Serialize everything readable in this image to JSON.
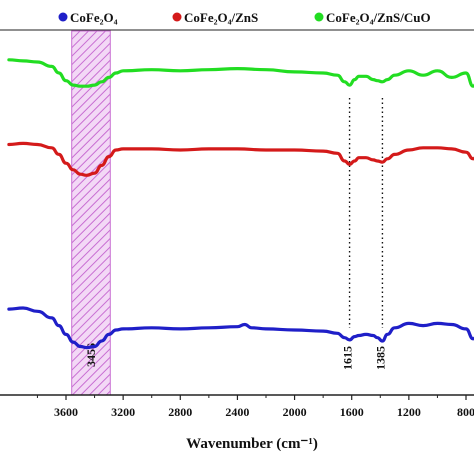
{
  "chart_data": {
    "type": "line",
    "title": "",
    "xlabel": "Wavenumber (cm⁻¹)",
    "ylabel": "",
    "x_axis": "reversed",
    "xlim": [
      4000,
      650
    ],
    "x_ticks": [
      3600,
      3200,
      2800,
      2400,
      2000,
      1600,
      1200,
      800
    ],
    "x_tick_labels": [
      "3600",
      "3200",
      "2800",
      "2400",
      "2000",
      "1600",
      "1200",
      "800"
    ],
    "grid": false,
    "legend_position": "top",
    "series": [
      {
        "name": "CoFe₂O₄",
        "color": "#1f1fc8",
        "x": [
          4000,
          3900,
          3800,
          3700,
          3650,
          3600,
          3550,
          3500,
          3456,
          3400,
          3350,
          3300,
          3250,
          3200,
          3000,
          2800,
          2600,
          2400,
          2350,
          2300,
          2200,
          2000,
          1800,
          1700,
          1650,
          1615,
          1580,
          1550,
          1500,
          1450,
          1420,
          1385,
          1350,
          1300,
          1200,
          1100,
          1000,
          900,
          800,
          750,
          700
        ],
        "y": [
          0.95,
          1.0,
          0.85,
          0.55,
          0.2,
          -0.2,
          -0.55,
          -0.75,
          -0.8,
          -0.75,
          -0.5,
          -0.2,
          0.0,
          0.05,
          0.1,
          0.05,
          0.1,
          0.15,
          0.25,
          0.1,
          0.05,
          0.0,
          -0.05,
          -0.15,
          -0.35,
          -0.45,
          -0.3,
          -0.25,
          -0.2,
          -0.25,
          -0.35,
          -0.5,
          -0.2,
          0.1,
          0.3,
          0.2,
          0.3,
          0.25,
          0.05,
          -0.4,
          0.0
        ]
      },
      {
        "name": "CoFe₂O₄/ZnS",
        "color": "#d41a1a",
        "x": [
          4000,
          3900,
          3800,
          3700,
          3650,
          3600,
          3550,
          3500,
          3456,
          3400,
          3350,
          3300,
          3250,
          3200,
          3000,
          2800,
          2600,
          2400,
          2200,
          2000,
          1800,
          1700,
          1650,
          1615,
          1580,
          1550,
          1500,
          1450,
          1420,
          1385,
          1350,
          1300,
          1200,
          1100,
          1000,
          900,
          800,
          750,
          700
        ],
        "y": [
          0.25,
          0.3,
          0.25,
          0.1,
          -0.2,
          -0.6,
          -0.9,
          -1.1,
          -1.15,
          -1.05,
          -0.7,
          -0.3,
          0.0,
          0.05,
          0.05,
          0.0,
          0.05,
          0.05,
          0.0,
          0.0,
          -0.05,
          -0.15,
          -0.5,
          -0.65,
          -0.5,
          -0.35,
          -0.35,
          -0.45,
          -0.5,
          -0.55,
          -0.4,
          -0.2,
          0.0,
          0.1,
          0.1,
          0.05,
          -0.1,
          -0.4,
          0.0
        ]
      },
      {
        "name": "CoFe₂O₄/ZnS/CuO",
        "color": "#22dd22",
        "x": [
          4000,
          3900,
          3800,
          3700,
          3650,
          3600,
          3550,
          3500,
          3456,
          3400,
          3350,
          3300,
          3250,
          3200,
          3000,
          2800,
          2600,
          2400,
          2200,
          2000,
          1800,
          1700,
          1650,
          1615,
          1580,
          1550,
          1500,
          1450,
          1420,
          1385,
          1350,
          1300,
          1200,
          1100,
          1000,
          900,
          800,
          750,
          700
        ],
        "y": [
          1.6,
          1.55,
          1.5,
          1.3,
          1.0,
          0.65,
          0.45,
          0.4,
          0.4,
          0.45,
          0.6,
          0.8,
          1.0,
          1.1,
          1.15,
          1.1,
          1.15,
          1.2,
          1.15,
          1.05,
          1.0,
          0.9,
          0.6,
          0.45,
          0.7,
          0.85,
          0.85,
          0.7,
          0.65,
          0.6,
          0.7,
          0.9,
          1.1,
          0.9,
          1.1,
          0.8,
          1.0,
          0.4,
          0.9
        ]
      }
    ],
    "annotations": [
      {
        "type": "band",
        "x_range": [
          3560,
          3290
        ],
        "color": "#c86ed2",
        "label": "3456"
      },
      {
        "type": "vline",
        "x": 1615,
        "label": "1615"
      },
      {
        "type": "vline",
        "x": 1385,
        "label": "1385"
      },
      {
        "type": "band",
        "x_range": [
          685,
          650
        ],
        "color": "#d2a06e",
        "label": ""
      }
    ]
  }
}
